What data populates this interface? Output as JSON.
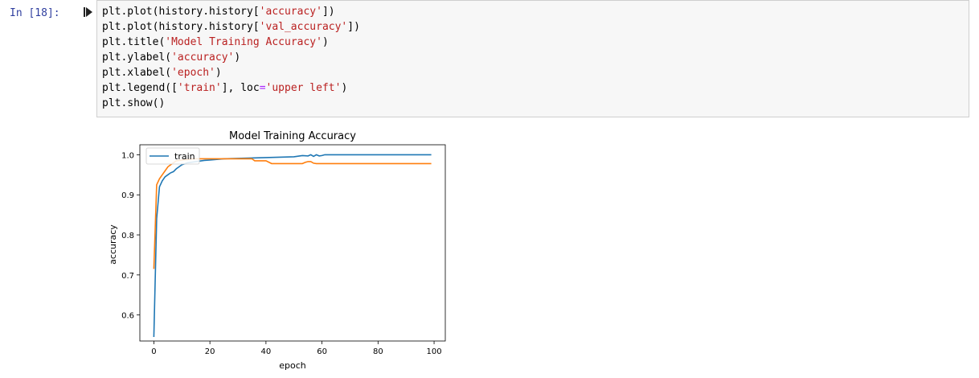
{
  "cell": {
    "prompt": "In [18]:",
    "code": [
      [
        "plt.plot(history.history[",
        "'accuracy'",
        "])"
      ],
      [
        "plt.plot(history.history[",
        "'val_accuracy'",
        "])"
      ],
      [
        "plt.title(",
        "'Model Training Accuracy'",
        ")"
      ],
      [
        "plt.ylabel(",
        "'accuracy'",
        ")"
      ],
      [
        "plt.xlabel(",
        "'epoch'",
        ")"
      ],
      [
        "plt.legend([",
        "'train'",
        "], loc",
        "=",
        "'upper left'",
        ")"
      ],
      [
        "plt.show()"
      ]
    ]
  },
  "colors": {
    "series_train": "#1f77b4",
    "series_val": "#ff7f0e",
    "prompt": "#303f9f",
    "string": "#ba2121",
    "operator": "#aa22ff"
  },
  "chart_data": {
    "type": "line",
    "title": "Model Training Accuracy",
    "xlabel": "epoch",
    "ylabel": "accuracy",
    "xlim": [
      -5,
      104
    ],
    "ylim": [
      0.535,
      1.025
    ],
    "xticks": [
      0,
      20,
      40,
      60,
      80,
      100
    ],
    "yticks": [
      0.6,
      0.7,
      0.8,
      0.9,
      1.0
    ],
    "ytick_labels": [
      "0.6",
      "0.7",
      "0.8",
      "0.9",
      "1.0"
    ],
    "legend": {
      "entries": [
        "train"
      ],
      "placement": "upper left"
    },
    "series": [
      {
        "name": "train",
        "x": [
          0,
          1,
          2,
          3,
          4,
          5,
          6,
          7,
          8,
          10,
          12,
          14,
          16,
          18,
          20,
          25,
          30,
          35,
          40,
          45,
          50,
          53,
          55,
          56,
          57,
          58,
          59,
          60,
          61,
          62,
          70,
          80,
          90,
          99
        ],
        "y": [
          0.545,
          0.84,
          0.92,
          0.935,
          0.945,
          0.95,
          0.955,
          0.958,
          0.965,
          0.975,
          0.98,
          0.982,
          0.984,
          0.986,
          0.987,
          0.99,
          0.991,
          0.992,
          0.993,
          0.994,
          0.995,
          0.998,
          0.997,
          1.0,
          0.996,
          1.0,
          0.997,
          0.998,
          1.0,
          1.0,
          1.0,
          1.0,
          1.0,
          1.0
        ]
      },
      {
        "x": [
          0,
          1,
          2,
          3,
          4,
          5,
          6,
          7,
          8,
          10,
          12,
          14,
          16,
          18,
          20,
          25,
          30,
          35,
          36,
          38,
          40,
          42,
          45,
          50,
          53,
          54,
          55,
          56,
          57,
          58,
          60,
          70,
          80,
          90,
          99
        ],
        "y": [
          0.715,
          0.925,
          0.94,
          0.95,
          0.96,
          0.97,
          0.975,
          0.98,
          0.985,
          0.987,
          0.988,
          0.99,
          0.99,
          0.99,
          0.99,
          0.99,
          0.99,
          0.99,
          0.985,
          0.985,
          0.985,
          0.978,
          0.978,
          0.978,
          0.978,
          0.981,
          0.983,
          0.983,
          0.979,
          0.978,
          0.978,
          0.978,
          0.978,
          0.978,
          0.978
        ]
      }
    ]
  }
}
